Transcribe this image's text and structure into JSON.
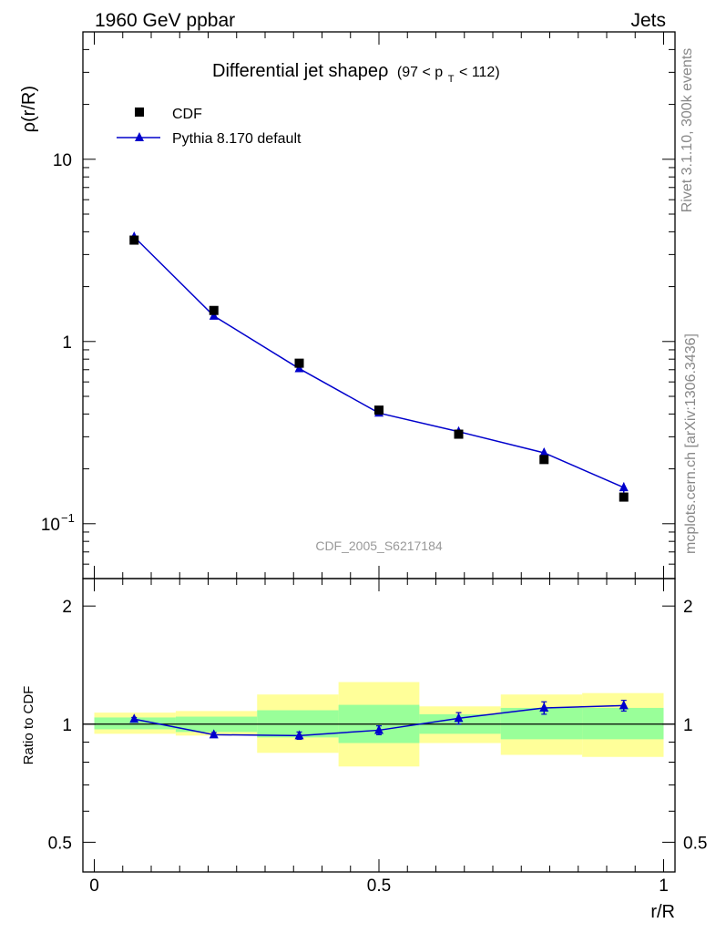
{
  "header": {
    "left": "1960 GeV ppbar",
    "right": "Jets"
  },
  "side_labels": {
    "top": "Rivet 3.1.10,  300k events",
    "bottom": "mcplots.cern.ch [arXiv:1306.3436]"
  },
  "chart_data": [
    {
      "type": "scatter",
      "title": "Differential jet shapeρ",
      "title_cut": "(97 < p",
      "title_cut_sub": "T",
      "title_cut_end": " < 112)",
      "ylabel": "ρ(r/R)",
      "yscale": "log",
      "ylim": [
        0.05,
        50
      ],
      "xlim": [
        -0.02,
        1.02
      ],
      "reference": "CDF_2005_S6217184",
      "legend_position": "top-left",
      "ytick_labels": [
        {
          "value": 0.1,
          "base": "10",
          "exp": "−1"
        },
        {
          "value": 1,
          "base": "1",
          "exp": ""
        },
        {
          "value": 10,
          "base": "10",
          "exp": ""
        }
      ],
      "series": [
        {
          "name": "CDF",
          "marker": "square",
          "color": "#000000",
          "x": [
            0.07,
            0.21,
            0.36,
            0.5,
            0.64,
            0.79,
            0.93
          ],
          "y": [
            3.6,
            1.48,
            0.76,
            0.42,
            0.31,
            0.225,
            0.14
          ]
        },
        {
          "name": "Pythia 8.170 default",
          "marker": "triangle",
          "color": "#0000cc",
          "x": [
            0.07,
            0.21,
            0.36,
            0.5,
            0.64,
            0.79,
            0.93
          ],
          "y": [
            3.75,
            1.38,
            0.71,
            0.405,
            0.32,
            0.245,
            0.158
          ],
          "yerr": [
            0.1,
            0.04,
            0.02,
            0.01,
            0.012,
            0.014,
            0.01
          ]
        }
      ]
    },
    {
      "type": "line",
      "ylabel": "Ratio to CDF",
      "xlabel": "r/R",
      "yscale": "log",
      "ylim": [
        0.42,
        2.35
      ],
      "xlim": [
        -0.02,
        1.02
      ],
      "xtick_labels": [
        {
          "value": 0,
          "label": "0"
        },
        {
          "value": 0.5,
          "label": "0.5"
        },
        {
          "value": 1,
          "label": "1"
        }
      ],
      "ytick_labels": [
        {
          "value": 0.5,
          "label": "0.5"
        },
        {
          "value": 1,
          "label": "1"
        },
        {
          "value": 2,
          "label": "2"
        }
      ],
      "bands": [
        {
          "x0": 0.0,
          "x1": 0.143,
          "inner": [
            0.97,
            1.04
          ],
          "outer": [
            0.945,
            1.07
          ]
        },
        {
          "x0": 0.143,
          "x1": 0.286,
          "inner": [
            0.955,
            1.045
          ],
          "outer": [
            0.935,
            1.08
          ]
        },
        {
          "x0": 0.286,
          "x1": 0.429,
          "inner": [
            0.925,
            1.085
          ],
          "outer": [
            0.845,
            1.19
          ]
        },
        {
          "x0": 0.429,
          "x1": 0.571,
          "inner": [
            0.895,
            1.12
          ],
          "outer": [
            0.78,
            1.28
          ]
        },
        {
          "x0": 0.571,
          "x1": 0.714,
          "inner": [
            0.945,
            1.06
          ],
          "outer": [
            0.895,
            1.11
          ]
        },
        {
          "x0": 0.714,
          "x1": 0.857,
          "inner": [
            0.915,
            1.1
          ],
          "outer": [
            0.835,
            1.19
          ]
        },
        {
          "x0": 0.857,
          "x1": 1.0,
          "inner": [
            0.915,
            1.1
          ],
          "outer": [
            0.825,
            1.2
          ]
        }
      ],
      "series": [
        {
          "name": "Pythia 8.170 default",
          "color": "#0000cc",
          "x": [
            0.07,
            0.21,
            0.36,
            0.5,
            0.64,
            0.79,
            0.93
          ],
          "y": [
            1.03,
            0.94,
            0.935,
            0.965,
            1.035,
            1.1,
            1.115
          ],
          "yerr": [
            0.01,
            0.012,
            0.02,
            0.025,
            0.035,
            0.04,
            0.035
          ]
        }
      ],
      "colors": {
        "inner_band": "#99ff99",
        "outer_band": "#ffff99"
      }
    }
  ]
}
